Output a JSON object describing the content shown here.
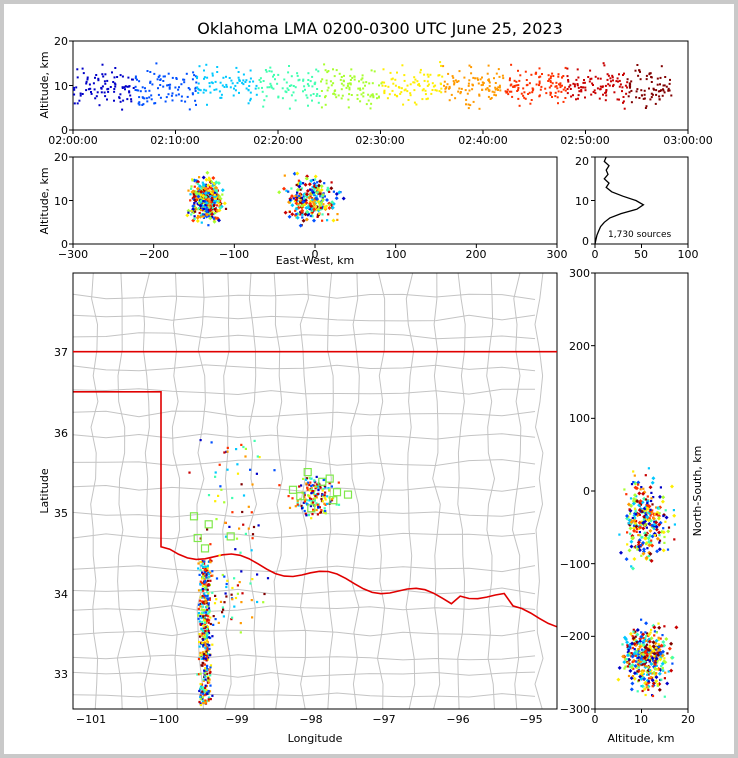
{
  "chart_data": {
    "type": "scatter",
    "title": "Oklahoma LMA 0200-0300 UTC June 25, 2023",
    "source_count_label": "1,730 sources",
    "panels": {
      "time_height": {
        "ylabel": "Altitude, km",
        "yticks": [
          "0",
          "10",
          "20"
        ],
        "xticks": [
          "02:00:00",
          "02:10:00",
          "02:20:00",
          "02:30:00",
          "02:40:00",
          "02:50:00",
          "03:00:00"
        ],
        "xlim": [
          0,
          60
        ],
        "ylim": [
          0,
          20
        ]
      },
      "ew_height": {
        "xlabel": "East-West, km",
        "ylabel": "Altitude, km",
        "xticks": [
          "−300",
          "−200",
          "−100",
          "0",
          "100",
          "200",
          "300"
        ],
        "yticks": [
          "0",
          "10",
          "20"
        ],
        "xlim": [
          -300,
          300
        ],
        "ylim": [
          0,
          20
        ]
      },
      "histogram": {
        "xticks": [
          "0",
          "50",
          "100"
        ],
        "yticks": [
          "0",
          "10",
          "20"
        ],
        "xlim": [
          0,
          100
        ],
        "ylim": [
          0,
          20
        ],
        "profile": [
          [
            0,
            0
          ],
          [
            1,
            1
          ],
          [
            2,
            2
          ],
          [
            4,
            3
          ],
          [
            6,
            4
          ],
          [
            10,
            5
          ],
          [
            16,
            6
          ],
          [
            28,
            7
          ],
          [
            45,
            8
          ],
          [
            52,
            9
          ],
          [
            44,
            10
          ],
          [
            30,
            11
          ],
          [
            18,
            12
          ],
          [
            12,
            13
          ],
          [
            15,
            14
          ],
          [
            10,
            15
          ],
          [
            14,
            16
          ],
          [
            12,
            17
          ],
          [
            15,
            18
          ],
          [
            10,
            19
          ],
          [
            12,
            20
          ]
        ]
      },
      "plan": {
        "xlabel": "Longitude",
        "ylabel": "Latitude",
        "xticks": [
          "−101",
          "−100",
          "−99",
          "−98",
          "−97",
          "−96",
          "−95"
        ],
        "yticks": [
          "33",
          "34",
          "35",
          "36",
          "37"
        ],
        "xlim": [
          -101.2,
          -94.6
        ],
        "ylim": [
          32.55,
          37.98
        ]
      },
      "ns_height": {
        "xlabel": "Altitude, km",
        "ylabel": "North-South, km",
        "xticks": [
          "0",
          "10",
          "20"
        ],
        "yticks": [
          "300",
          "200",
          "100",
          "0",
          "−100",
          "−200",
          "−300"
        ],
        "xlim": [
          0,
          20
        ],
        "ylim": [
          -300,
          300
        ]
      }
    },
    "color_scale": [
      "#0000c8",
      "#0050ff",
      "#00c8ff",
      "#40ffb0",
      "#a8ff30",
      "#ffee00",
      "#ff9a00",
      "#ff3000",
      "#c80000",
      "#800000"
    ]
  }
}
